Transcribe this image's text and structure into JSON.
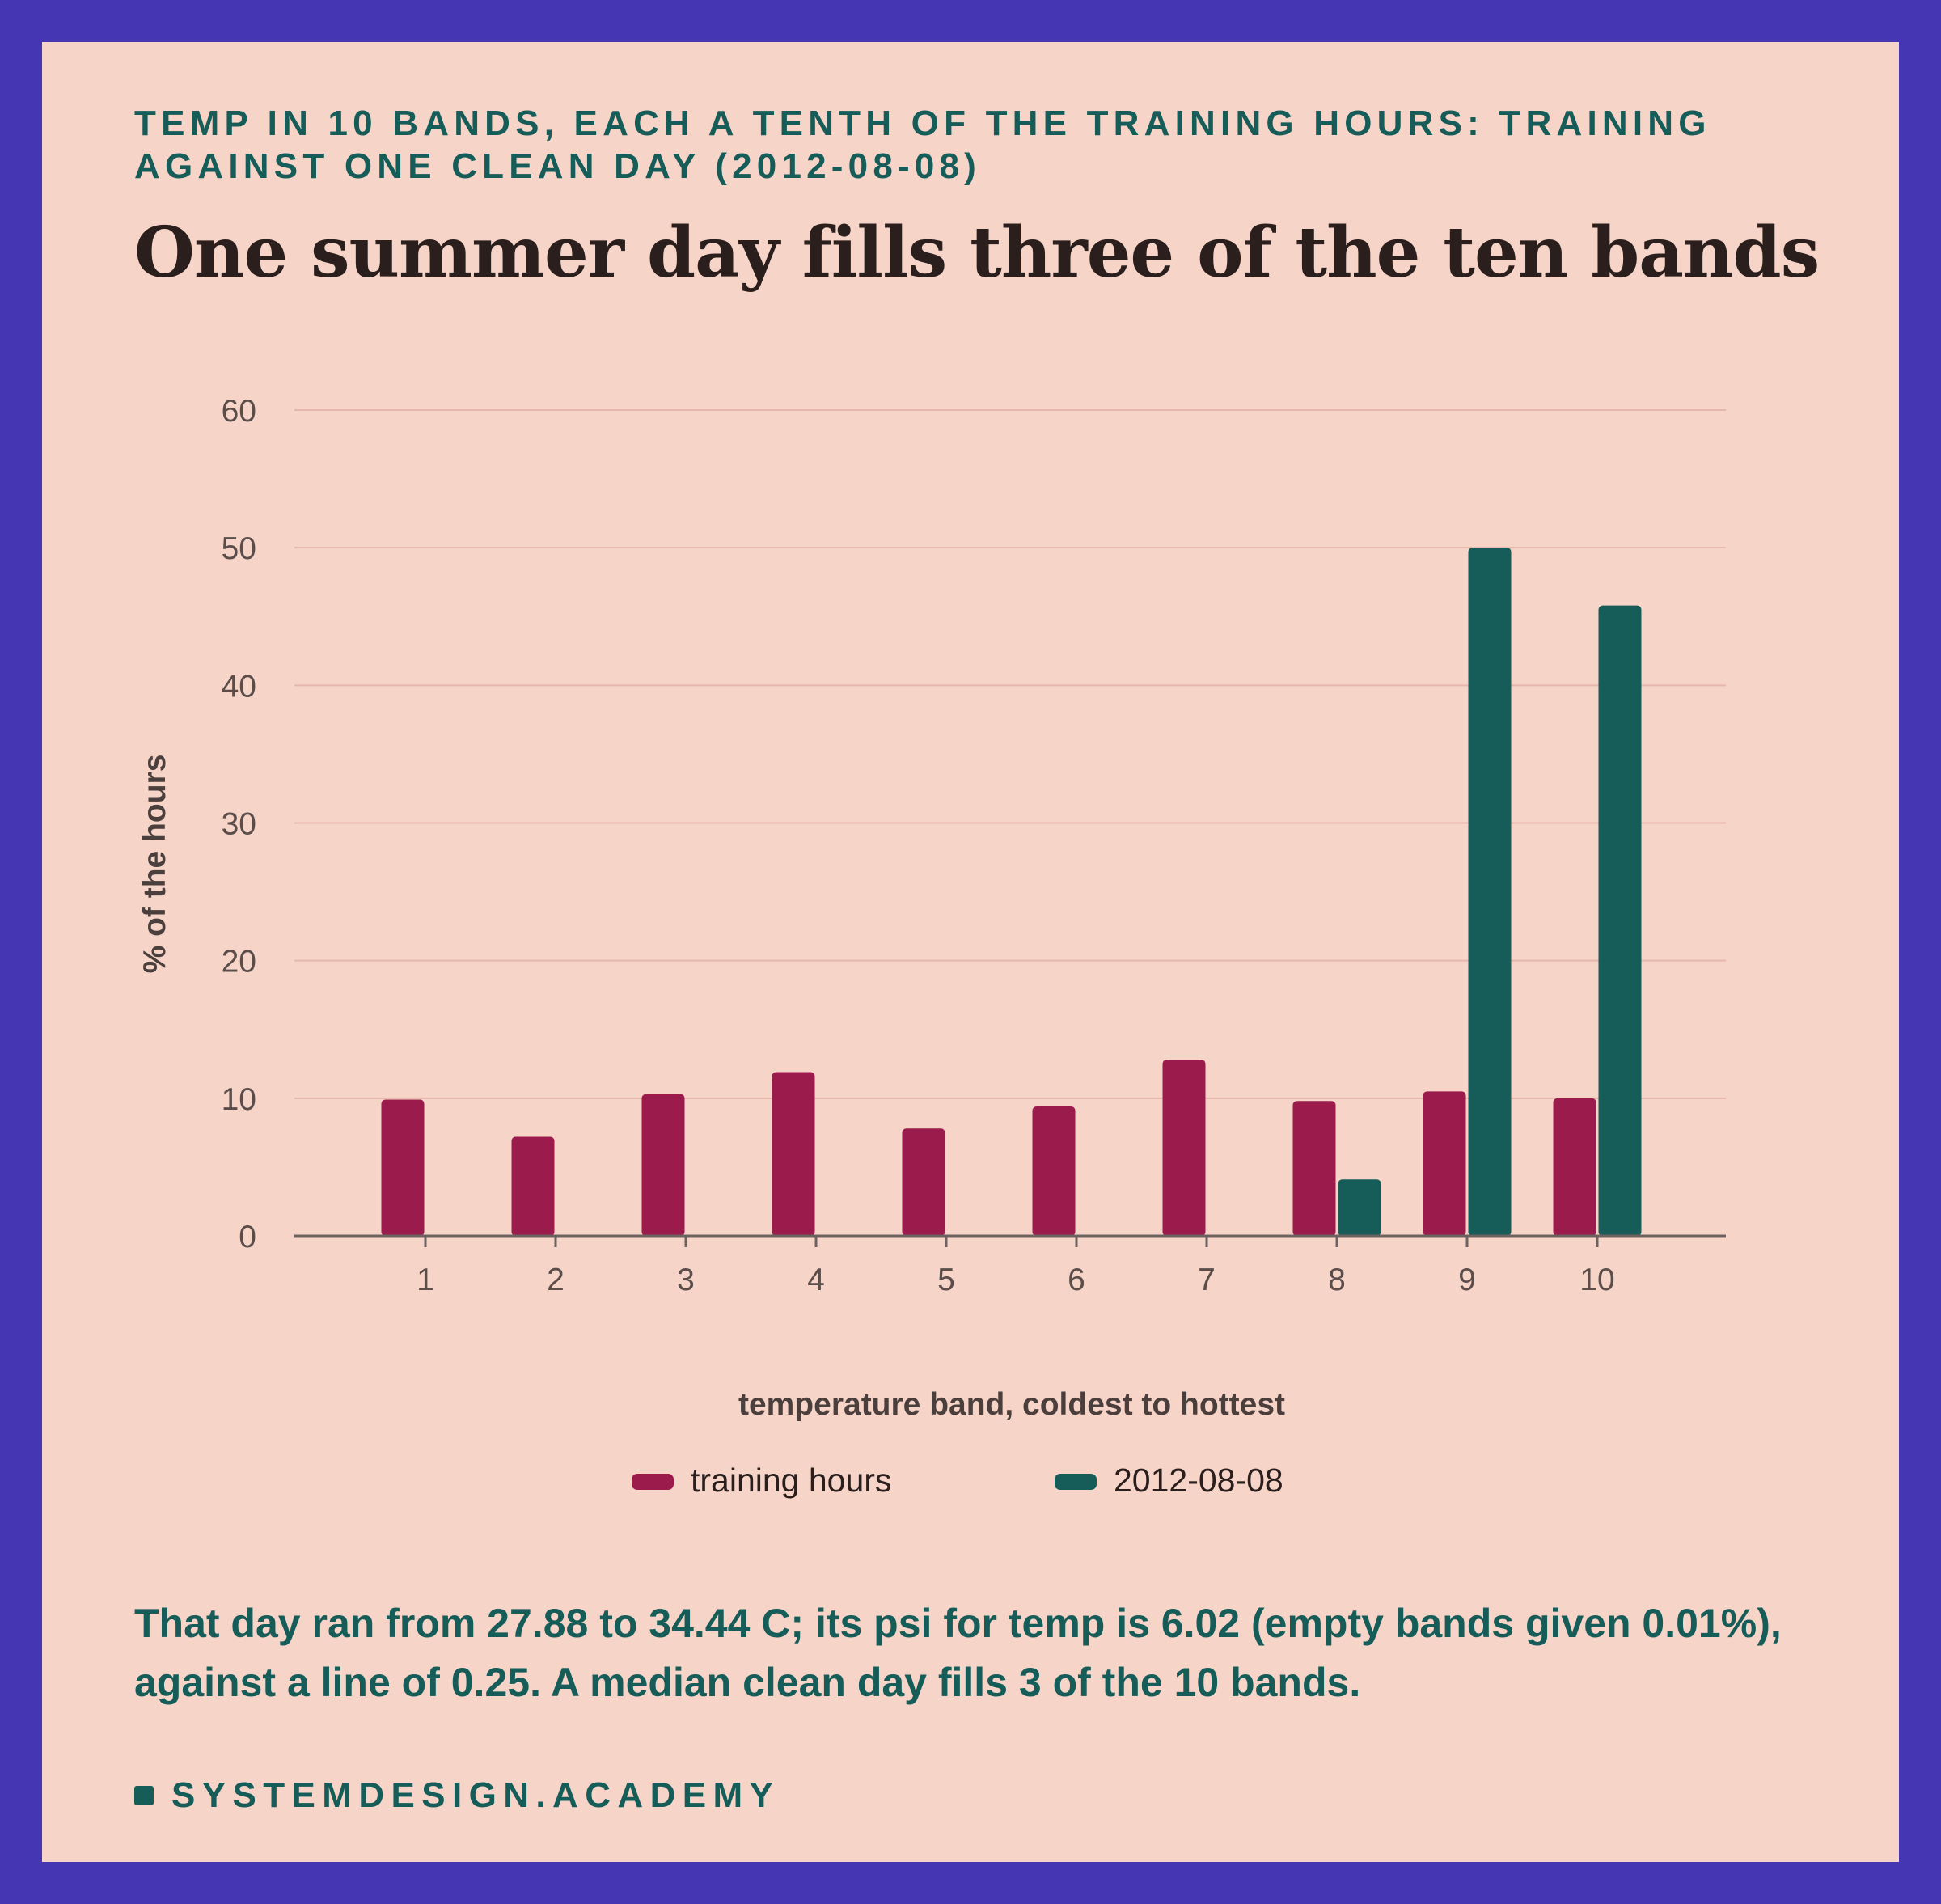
{
  "kicker": "TEMP IN 10 BANDS, EACH A TENTH OF THE TRAINING HOURS: TRAINING AGAINST ONE CLEAN DAY (2012-08-08)",
  "headline": "One summer day fills three of the ten bands",
  "caption": "That day ran from 27.88 to 34.44 C; its psi for temp is 6.02 (empty bands given 0.01%), against a line of 0.25. A median clean day fills 3 of the 10 bands.",
  "brand": "SYSTEMDESIGN.ACADEMY",
  "chart_data": {
    "type": "bar",
    "xlabel": "temperature band, coldest to hottest",
    "ylabel": "% of the hours",
    "ylim": [
      0,
      60
    ],
    "yticks": [
      0,
      10,
      20,
      30,
      40,
      50,
      60
    ],
    "grid": true,
    "legend_position": "bottom",
    "categories": [
      "1",
      "2",
      "3",
      "4",
      "5",
      "6",
      "7",
      "8",
      "9",
      "10"
    ],
    "series": [
      {
        "name": "training hours",
        "color": "#9b1b4c",
        "values": [
          9.9,
          7.2,
          10.3,
          11.9,
          7.8,
          9.4,
          12.8,
          9.8,
          10.5,
          10.0
        ]
      },
      {
        "name": "2012-08-08",
        "color": "#165c58",
        "values": [
          0,
          0,
          0,
          0,
          0,
          0,
          0,
          4.1,
          50.0,
          45.8
        ]
      }
    ]
  }
}
